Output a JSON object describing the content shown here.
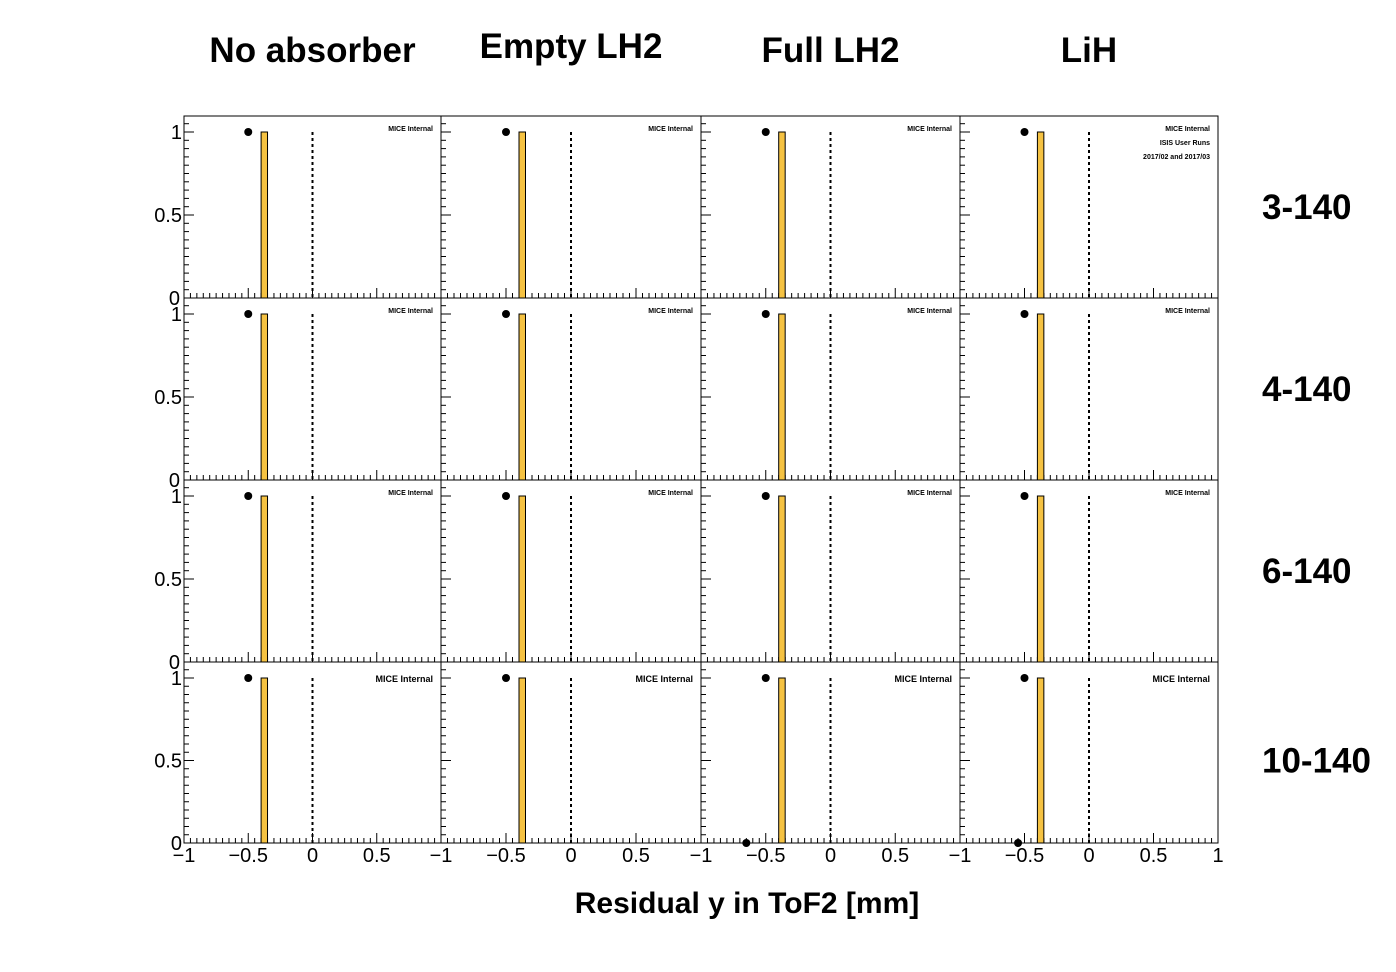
{
  "chart_data": {
    "type": "bar",
    "columns": [
      "No absorber",
      "Empty LH2",
      "Full LH2",
      "LiH"
    ],
    "rows": [
      "3-140",
      "4-140",
      "6-140",
      "10-140"
    ],
    "xlabel": "Residual y in ToF2 [mm]",
    "xlim": [
      -1,
      1
    ],
    "ylim": [
      0,
      1.1
    ],
    "x_ticks": [
      "−1",
      "−0.5",
      "0",
      "0.5",
      "1"
    ],
    "y_ticks": [
      "0",
      "0.5",
      "1"
    ],
    "annotations": {
      "watermark": "MICE Internal",
      "runs_line1": "ISIS User Runs",
      "runs_line2": "2017/02 and 2017/03"
    },
    "histogram": {
      "bin_low": -0.4,
      "bin_high": -0.35,
      "value": 1,
      "color": "#f5c242"
    },
    "data_points": {
      "x": -0.5,
      "y": 1
    },
    "reference_line_x": 0,
    "extra_points": [
      {
        "row": 3,
        "col": 2,
        "x": -0.65,
        "y": 0
      },
      {
        "row": 3,
        "col": 3,
        "x": -0.55,
        "y": 0
      }
    ]
  }
}
